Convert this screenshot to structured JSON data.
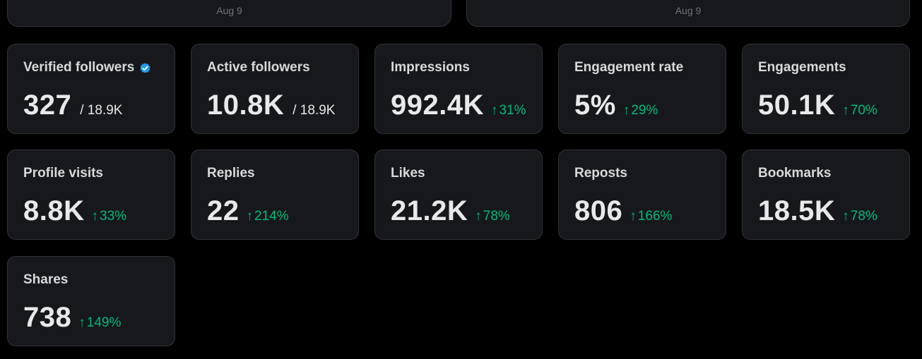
{
  "top": {
    "left_date": "Aug 9",
    "right_date": "Aug 9"
  },
  "colors": {
    "background": "#000000",
    "card": "#16181c",
    "border": "#2f3336",
    "positive": "#00ba7c",
    "verified": "#1d9bf0"
  },
  "metrics": {
    "verified_followers": {
      "label": "Verified followers",
      "value": "327",
      "total": "/ 18.9K",
      "icon": "verified-badge-icon"
    },
    "active_followers": {
      "label": "Active followers",
      "value": "10.8K",
      "total": "/ 18.9K"
    },
    "impressions": {
      "label": "Impressions",
      "value": "992.4K",
      "change": "31%",
      "arrow": "↑"
    },
    "engagement_rate": {
      "label": "Engagement rate",
      "value": "5%",
      "change": "29%",
      "arrow": "↑"
    },
    "engagements": {
      "label": "Engagements",
      "value": "50.1K",
      "change": "70%",
      "arrow": "↑"
    },
    "profile_visits": {
      "label": "Profile visits",
      "value": "8.8K",
      "change": "33%",
      "arrow": "↑"
    },
    "replies": {
      "label": "Replies",
      "value": "22",
      "change": "214%",
      "arrow": "↑"
    },
    "likes": {
      "label": "Likes",
      "value": "21.2K",
      "change": "78%",
      "arrow": "↑"
    },
    "reposts": {
      "label": "Reposts",
      "value": "806",
      "change": "166%",
      "arrow": "↑"
    },
    "bookmarks": {
      "label": "Bookmarks",
      "value": "18.5K",
      "change": "78%",
      "arrow": "↑"
    },
    "shares": {
      "label": "Shares",
      "value": "738",
      "change": "149%",
      "arrow": "↑"
    }
  }
}
